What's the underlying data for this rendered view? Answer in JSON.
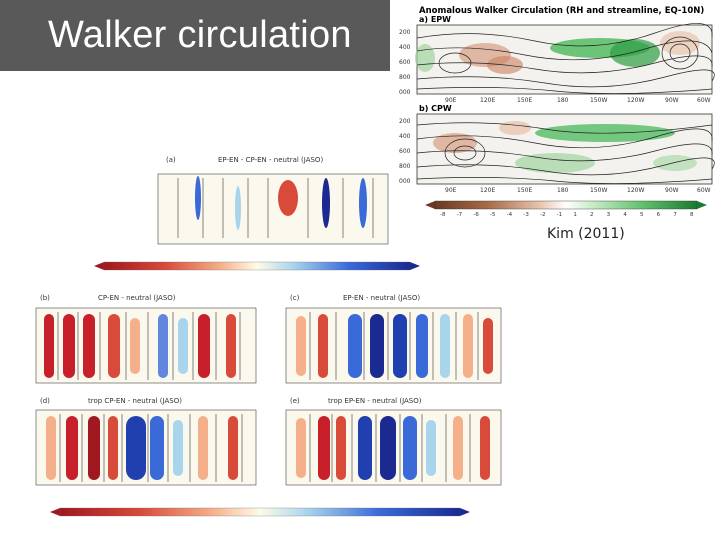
{
  "slide": {
    "title": "Walker circulation",
    "citation": "Kim (2011)"
  },
  "right_figure": {
    "title": "Anomalous Walker Circulation (RH and streamline, EQ-10N)",
    "panel_a": "a) EPW",
    "panel_b": "b) CPW",
    "y_ticks": [
      "200",
      "400",
      "600",
      "800",
      "000"
    ],
    "x_ticks": [
      "90E",
      "120E",
      "150E",
      "180",
      "150W",
      "120W",
      "90W",
      "60W"
    ],
    "colorbar_ticks": [
      "-8",
      "-7",
      "-6",
      "-5",
      "-4",
      "-3",
      "-2",
      "-1",
      "1",
      "2",
      "3",
      "4",
      "5",
      "6",
      "7",
      "8"
    ],
    "colors": {
      "dry": "#8b5a3c",
      "wet": "#2e9e44"
    }
  },
  "left_figure": {
    "panel_a": "(a)",
    "panel_a_title": "EP-EN - CP-EN - neutral (JASO)",
    "panel_b": "(b)",
    "panel_b_title": "CP-EN - neutral (JASO)",
    "panel_c": "(c)",
    "panel_c_title": "EP-EN - neutral (JASO)",
    "panel_d": "(d)",
    "panel_d_title": "trop CP-EN - neutral (JASO)",
    "panel_e": "(e)",
    "panel_e_title": "trop EP-EN - neutral (JASO)",
    "colors": {
      "warm": "#c8202a",
      "cool": "#2140b0"
    }
  }
}
